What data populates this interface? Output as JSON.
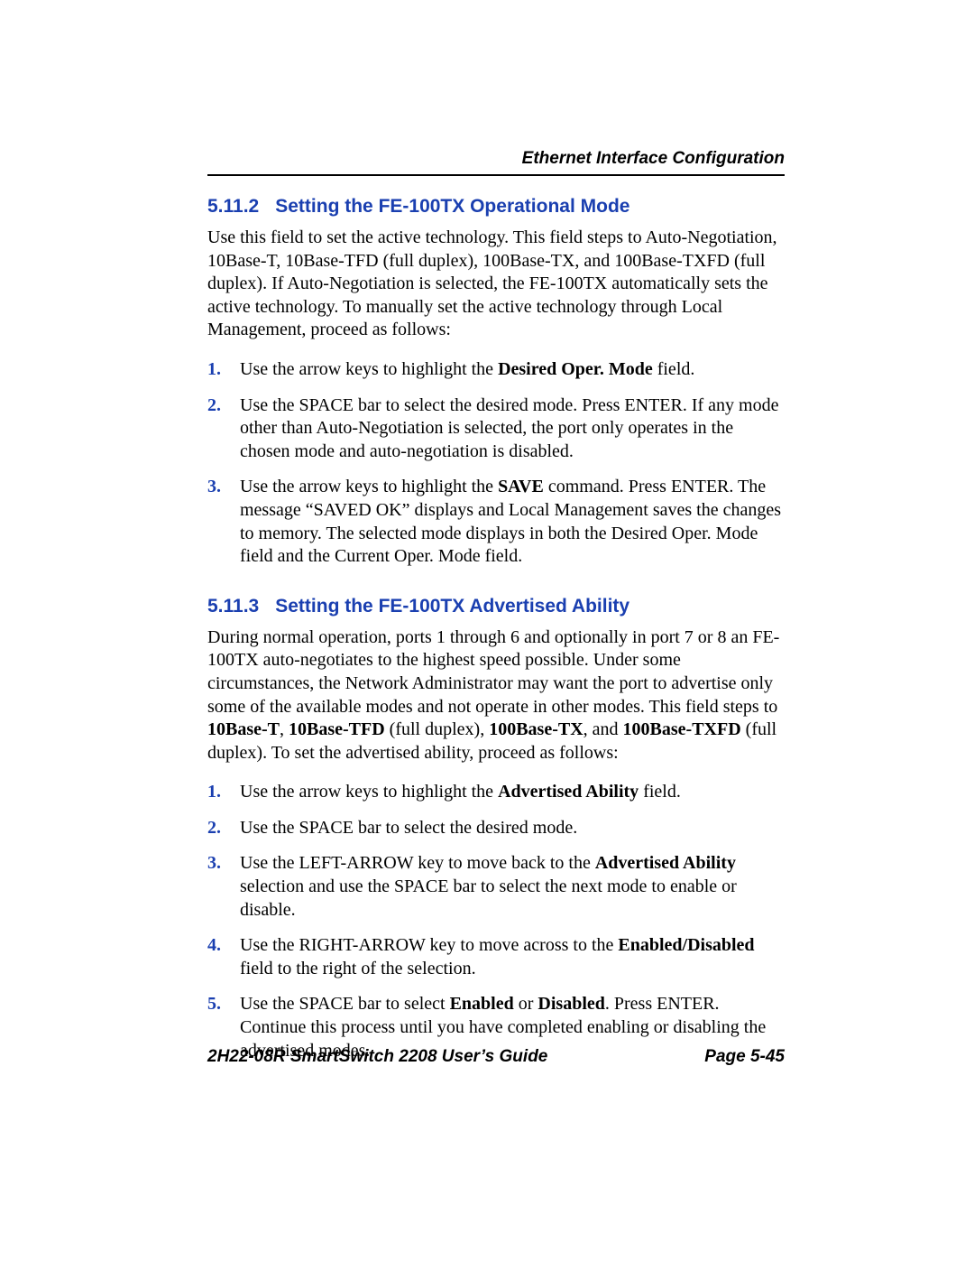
{
  "colors": {
    "heading": "#1a3fb0",
    "text": "#000000",
    "background": "#ffffff",
    "rule": "#000000"
  },
  "typography": {
    "heading_font": "Arial, Helvetica, sans-serif",
    "heading_size_pt": 16,
    "body_font": "Times New Roman, Times, serif",
    "body_size_pt": 15,
    "footer_font": "Arial, Helvetica, sans-serif",
    "footer_size_pt": 14
  },
  "header": {
    "running_head": "Ethernet Interface Configuration"
  },
  "sections": [
    {
      "number": "5.11.2",
      "title": "Setting the FE-100TX Operational Mode",
      "paragraph_html": "Use this field to set the active technology. This field steps to Auto-Negotiation, 10Base-T, 10Base-TFD (full duplex), 100Base-TX, and 100Base-TXFD (full duplex). If Auto-Negotiation is selected, the FE-100TX automatically sets the active technology. To manually set the active technology through Local Management, proceed as follows:",
      "steps": [
        "Use the arrow keys to highlight the <span class=\"b\">Desired Oper. Mode</span> field.",
        "Use the SPACE bar to select the desired mode. Press ENTER. If any mode other than Auto-Negotiation is selected, the port only operates in the chosen mode and auto-negotiation is disabled.",
        "Use the arrow keys to highlight the <span class=\"b\">SAVE</span> command. Press ENTER. The message “SAVED OK” displays and Local Management saves the changes to memory. The selected mode displays in both the Desired Oper. Mode field and the Current Oper. Mode field."
      ]
    },
    {
      "number": "5.11.3",
      "title": "Setting the FE-100TX Advertised Ability",
      "paragraph_html": "During normal operation, ports 1 through 6 and optionally in port 7 or 8 an FE-100TX auto-negotiates to the highest speed possible. Under some circumstances, the Network Administrator may want the port to advertise only some of the available modes and not operate in other modes. This field steps to <span class=\"b\">10Base-T</span>, <span class=\"b\">10Base-TFD</span> (full duplex), <span class=\"b\">100Base-TX</span>, and <span class=\"b\">100Base-TXFD</span> (full duplex). To set the advertised ability, proceed as follows:",
      "steps": [
        "Use the arrow keys to highlight the <span class=\"b\">Advertised Ability</span> field.",
        "Use the SPACE bar to select the desired mode.",
        "Use the LEFT-ARROW key to move back to the <span class=\"b\">Advertised Ability</span> selection and use the SPACE bar to select the next mode to enable or disable.",
        "Use the RIGHT-ARROW key to move across to the <span class=\"b\">Enabled/Disabled</span> field to the right of the selection.",
        "Use the SPACE bar to select <span class=\"b\">Enabled</span> or <span class=\"b\">Disabled</span>. Press ENTER. Continue this process until you have completed enabling or disabling the advertised modes."
      ]
    }
  ],
  "footer": {
    "left": "2H22-08R SmartSwitch 2208 User’s Guide",
    "right": "Page 5-45"
  }
}
